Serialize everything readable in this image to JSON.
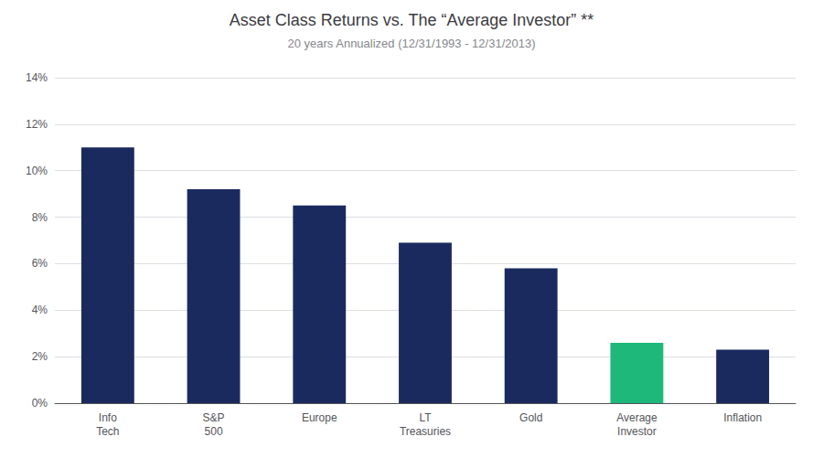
{
  "chart_data": {
    "type": "bar",
    "title": "Asset Class Returns vs. The “Average Investor” **",
    "subtitle": "20 years Annualized (12/31/1993 - 12/31/2013)",
    "categories": [
      "Info\nTech",
      "S&P\n500",
      "Europe",
      "LT\nTreasuries",
      "Gold",
      "Average\nInvestor",
      "Inflation"
    ],
    "values": [
      11.0,
      9.2,
      8.5,
      6.9,
      5.8,
      2.6,
      2.3
    ],
    "colors": [
      "#1b2a5e",
      "#1b2a5e",
      "#1b2a5e",
      "#1b2a5e",
      "#1b2a5e",
      "#1db87a",
      "#1b2a5e"
    ],
    "ylim": [
      0,
      14
    ],
    "yticks": [
      {
        "value": 0,
        "label": "0%"
      },
      {
        "value": 2,
        "label": "2%"
      },
      {
        "value": 4,
        "label": "4%"
      },
      {
        "value": 6,
        "label": "6%"
      },
      {
        "value": 8,
        "label": "8%"
      },
      {
        "value": 10,
        "label": "10%"
      },
      {
        "value": 12,
        "label": "12%"
      },
      {
        "value": 14,
        "label": "14%"
      }
    ],
    "grid": true
  }
}
